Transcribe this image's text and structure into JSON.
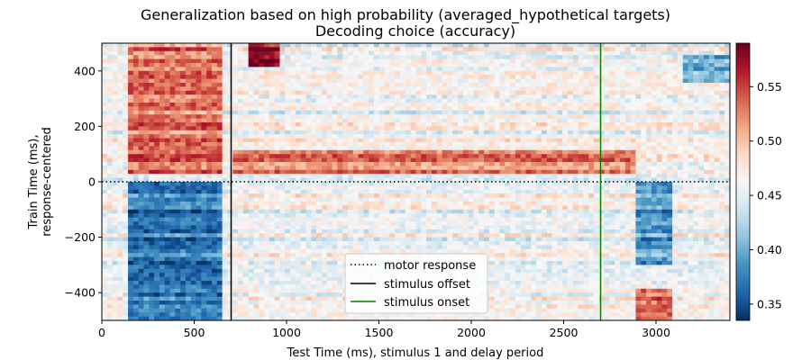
{
  "chart_data": {
    "type": "heatmap",
    "title": "Generalization based on high probability (averaged_hypothetical targets)",
    "subtitle": "Decoding choice (accuracy)",
    "xlabel": "Test Time (ms), stimulus 1 and delay period",
    "ylabel_line1": "Train Time (ms),",
    "ylabel_line2": "response-centered",
    "xlim": [
      0,
      3400
    ],
    "ylim": [
      -500,
      500
    ],
    "x_ticks": [
      0,
      500,
      1000,
      1500,
      2000,
      2500,
      3000
    ],
    "x_tick_labels": [
      "0",
      "500",
      "1000",
      "1500",
      "2000",
      "2500",
      "3000"
    ],
    "y_ticks": [
      -400,
      -200,
      0,
      200,
      400
    ],
    "y_tick_labels": [
      "−400",
      "−200",
      "0",
      "200",
      "400"
    ],
    "colormap": "RdBu_r",
    "color_range": [
      0.335,
      0.59
    ],
    "colorbar_ticks": [
      0.35,
      0.4,
      0.45,
      0.5,
      0.55
    ],
    "colorbar_tick_labels": [
      "0.35",
      "0.40",
      "0.45",
      "0.50",
      "0.55"
    ],
    "reference_lines": [
      {
        "orientation": "horizontal",
        "value": 0,
        "style": "dotted",
        "color": "#000000",
        "label": "motor response"
      },
      {
        "orientation": "vertical",
        "value": 700,
        "style": "solid",
        "color": "#000000",
        "label": "stimulus offset"
      },
      {
        "orientation": "vertical",
        "value": 2700,
        "style": "solid",
        "color": "#008000",
        "label": "stimulus onset"
      }
    ],
    "legend_position": "lower center",
    "regions": [
      {
        "x": [
          150,
          650
        ],
        "y": [
          -500,
          0
        ],
        "value": 0.37
      },
      {
        "x": [
          150,
          650
        ],
        "y": [
          30,
          500
        ],
        "value": 0.53
      },
      {
        "x": [
          700,
          2900
        ],
        "y": [
          30,
          120
        ],
        "value": 0.52
      },
      {
        "x": [
          800,
          950
        ],
        "y": [
          420,
          500
        ],
        "value": 0.58
      },
      {
        "x": [
          2900,
          3100
        ],
        "y": [
          -300,
          0
        ],
        "value": 0.39
      },
      {
        "x": [
          3150,
          3400
        ],
        "y": [
          360,
          450
        ],
        "value": 0.4
      },
      {
        "x": [
          2900,
          3100
        ],
        "y": [
          -500,
          -380
        ],
        "value": 0.53
      }
    ]
  }
}
